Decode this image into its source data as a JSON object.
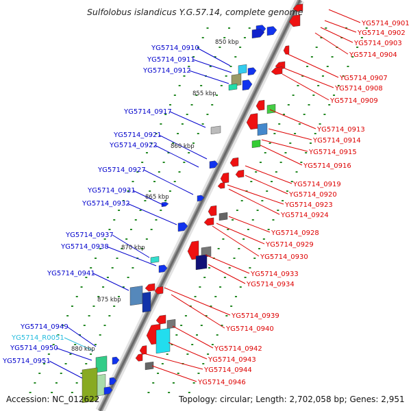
{
  "title": "Sulfolobus islandicus Y.G.57.14, complete genome",
  "accession": "Accession: NC_012622",
  "topology": "Topology: circular; Length: 2,702,058 bp; Genes: 2,951",
  "ticks": [
    "850 kbp",
    "855 kbp",
    "860 kbp",
    "865 kbp",
    "870 kbp",
    "875 kbp",
    "880 kbp"
  ],
  "colors": {
    "forward_label": "#0000cc",
    "reverse_label": "#dd0000",
    "rna_label": "#22bbdd"
  },
  "forward_labels": [
    "YG5714_0910",
    "YG5714_0911",
    "YG5714_0912",
    "YG5714_0917",
    "YG5714_0921",
    "YG5714_0922",
    "YG5714_0927",
    "YG5714_0931",
    "YG5714_0932",
    "YG5714_0937",
    "YG5714_0938",
    "YG5714_0941",
    "YG5714_0949",
    "YG5714_R0051",
    "YG5714_0950",
    "YG5714_0951"
  ],
  "reverse_labels": [
    "YG5714_0901",
    "YG5714_0902",
    "YG5714_0903",
    "YG5714_0904",
    "YG5714_0907",
    "YG5714_0908",
    "YG5714_0909",
    "YG5714_0913",
    "YG5714_0914",
    "YG5714_0915",
    "YG5714_0916",
    "YG5714_0919",
    "YG5714_0920",
    "YG5714_0923",
    "YG5714_0924",
    "YG5714_0928",
    "YG5714_0929",
    "YG5714_0930",
    "YG5714_0933",
    "YG5714_0934",
    "YG5714_0939",
    "YG5714_0940",
    "YG5714_0942",
    "YG5714_0943",
    "YG5714_0944",
    "YG5714_0946"
  ]
}
